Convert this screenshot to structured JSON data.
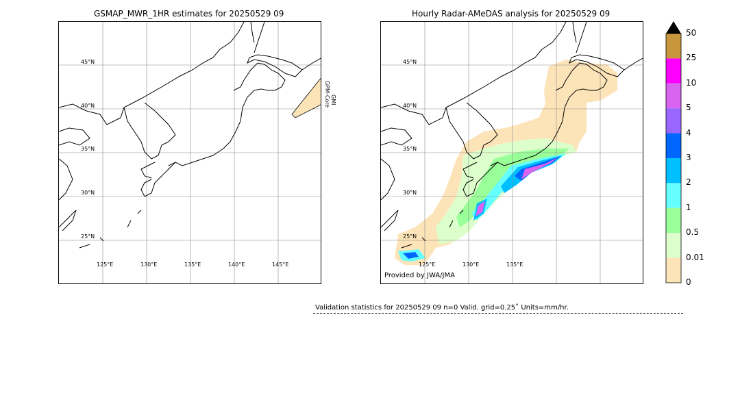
{
  "left_panel": {
    "title": "GSMAP_MWR_1HR estimates for 20250529 09",
    "lat_labels": [
      "45°N",
      "40°N",
      "35°N",
      "30°N",
      "25°N"
    ],
    "lon_labels": [
      "125°E",
      "130°E",
      "135°E",
      "140°E",
      "145°E"
    ],
    "satellite_label_1": "GPM-Core",
    "satellite_label_2": "GMI"
  },
  "right_panel": {
    "title": "Hourly Radar-AMeDAS analysis for 20250529 09",
    "lat_labels": [
      "45°N",
      "40°N",
      "35°N",
      "30°N",
      "25°N"
    ],
    "lon_labels": [
      "125°E",
      "130°E",
      "135°E"
    ],
    "credit": "Provided by JWA/JMA"
  },
  "colorbar": {
    "labels": [
      "50",
      "25",
      "10",
      "5",
      "4",
      "3",
      "2",
      "1",
      "0.5",
      "0.01",
      "0"
    ],
    "colors": [
      "#c8963c",
      "#ff00ff",
      "#d964f0",
      "#9966ff",
      "#0066ff",
      "#00bfff",
      "#66ffff",
      "#99ff99",
      "#ddffcc",
      "#fde4b8"
    ],
    "extend_color": "#000000"
  },
  "stats_line": "Validation statistics for 20250529 09  n=0 Valid. grid=0.25˚ Units=mm/hr.",
  "chart_data": [
    {
      "type": "heatmap",
      "title": "GSMAP_MWR_1HR estimates for 20250529 09",
      "xlabel": "",
      "ylabel": "",
      "x_ticks": [
        "125°E",
        "130°E",
        "135°E",
        "140°E",
        "145°E"
      ],
      "y_ticks": [
        "45°N",
        "40°N",
        "35°N",
        "30°N",
        "25°N"
      ],
      "xlim_deg_E": [
        120,
        150
      ],
      "ylim_deg_N": [
        20,
        50
      ],
      "grid": true,
      "swath_annotation": [
        "GPM-Core",
        "GMI"
      ]
    },
    {
      "type": "heatmap",
      "title": "Hourly Radar-AMeDAS analysis for 20250529 09",
      "xlabel": "",
      "ylabel": "",
      "x_ticks": [
        "125°E",
        "130°E",
        "135°E"
      ],
      "y_ticks": [
        "45°N",
        "40°N",
        "35°N",
        "30°N",
        "25°N"
      ],
      "xlim_deg_E": [
        120,
        150
      ],
      "ylim_deg_N": [
        20,
        50
      ],
      "grid": true,
      "colorbar_levels_mm_per_hr": [
        0,
        0.01,
        0.5,
        1,
        2,
        3,
        4,
        5,
        10,
        25,
        50
      ]
    }
  ]
}
